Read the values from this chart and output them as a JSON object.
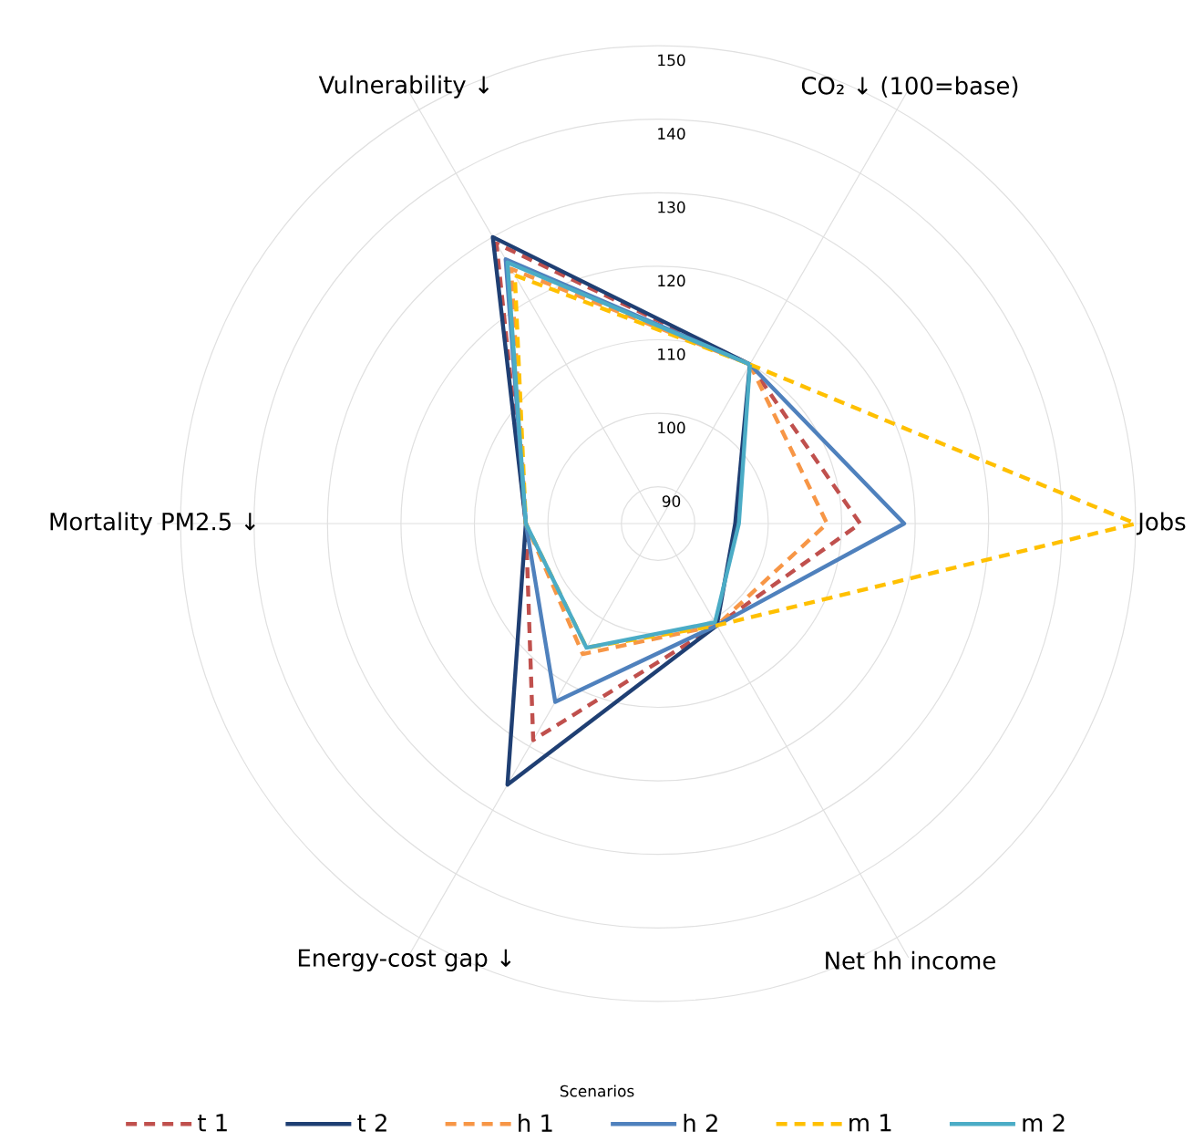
{
  "chart_data": {
    "type": "radar",
    "legend_title": "Scenarios",
    "legend": "bottom",
    "grid": true,
    "categories": [
      "CO₂ ↓ (100=base)",
      "Jobs",
      "Net hh income",
      "Energy-cost gap ↓",
      "Mortality PM2.5 ↓",
      "Vulnerability ↓"
    ],
    "ylim": [
      85,
      150
    ],
    "yticks": [
      90,
      100,
      110,
      120,
      130,
      140,
      150
    ],
    "series": [
      {
        "name": "t 1",
        "color": "#c0504d",
        "line_style": "dashed",
        "values": [
          110,
          112.5,
          101,
          119,
          103,
          129
        ]
      },
      {
        "name": "t 2",
        "color": "#1f3f73",
        "line_style": "solid",
        "values": [
          110,
          95.5,
          101,
          126,
          103,
          130
        ]
      },
      {
        "name": "h 1",
        "color": "#f79646",
        "line_style": "dashed",
        "values": [
          110,
          108,
          101,
          105.5,
          103,
          125
        ]
      },
      {
        "name": "h 2",
        "color": "#4f81bd",
        "line_style": "solid",
        "values": [
          110,
          118.5,
          101,
          113,
          103,
          126.5
        ]
      },
      {
        "name": "m 1",
        "color": "#ffc000",
        "line_style": "dashed",
        "values": [
          110,
          150,
          101,
          104.5,
          103,
          124
        ]
      },
      {
        "name": "m 2",
        "color": "#4bacc6",
        "line_style": "solid",
        "values": [
          110,
          96,
          100.5,
          104.5,
          103,
          126
        ]
      }
    ]
  }
}
